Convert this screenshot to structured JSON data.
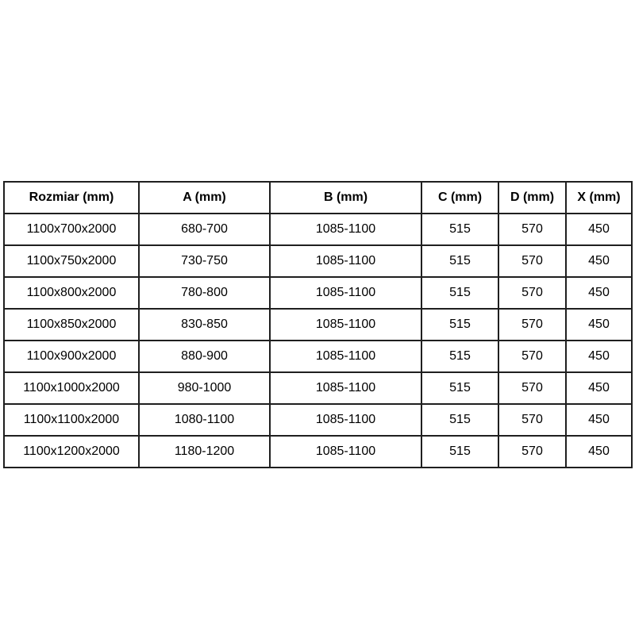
{
  "colors": {
    "page_background": "#ffffff",
    "cell_background": "#ffffff",
    "border": "#1f1f1f",
    "text": "#000000"
  },
  "chart_data": {
    "type": "table",
    "title": "",
    "columns": [
      "Rozmiar (mm)",
      "A (mm)",
      "B (mm)",
      "C (mm)",
      "D (mm)",
      "X (mm)"
    ],
    "rows": [
      [
        "1100x700x2000",
        "680-700",
        "1085-1100",
        "515",
        "570",
        "450"
      ],
      [
        "1100x750x2000",
        "730-750",
        "1085-1100",
        "515",
        "570",
        "450"
      ],
      [
        "1100x800x2000",
        "780-800",
        "1085-1100",
        "515",
        "570",
        "450"
      ],
      [
        "1100x850x2000",
        "830-850",
        "1085-1100",
        "515",
        "570",
        "450"
      ],
      [
        "1100x900x2000",
        "880-900",
        "1085-1100",
        "515",
        "570",
        "450"
      ],
      [
        "1100x1000x2000",
        "980-1000",
        "1085-1100",
        "515",
        "570",
        "450"
      ],
      [
        "1100x1100x2000",
        "1080-1100",
        "1085-1100",
        "515",
        "570",
        "450"
      ],
      [
        "1100x1200x2000",
        "1180-1200",
        "1085-1100",
        "515",
        "570",
        "450"
      ]
    ]
  }
}
